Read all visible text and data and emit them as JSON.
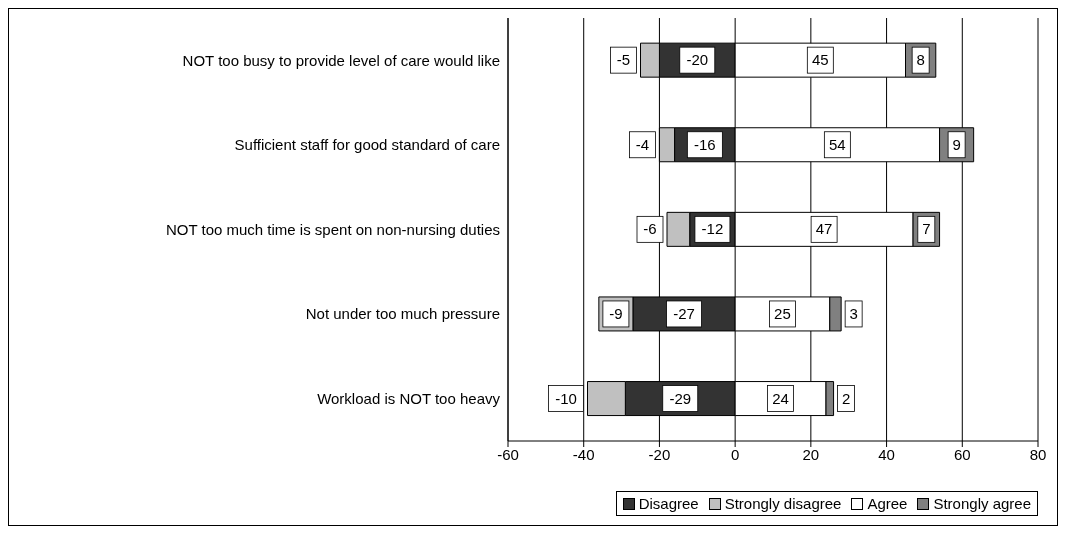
{
  "chart_data": {
    "type": "bar",
    "orientation": "horizontal",
    "stacked": true,
    "categories": [
      "NOT too busy to provide level of care would like",
      "Sufficient staff for good standard of care",
      "NOT too much time is spent on non-nursing duties",
      "Not under too much pressure",
      "Workload is NOT too heavy"
    ],
    "series": [
      {
        "name": "Disagree",
        "color": "#333333",
        "values": [
          -20,
          -16,
          -12,
          -27,
          -29
        ]
      },
      {
        "name": "Strongly disagree",
        "color": "#c0c0c0",
        "values": [
          -5,
          -4,
          -6,
          -9,
          -10
        ]
      },
      {
        "name": "Agree",
        "color": "#ffffff",
        "values": [
          45,
          54,
          47,
          25,
          24
        ]
      },
      {
        "name": "Strongly agree",
        "color": "#808080",
        "values": [
          8,
          9,
          7,
          3,
          2
        ]
      }
    ],
    "xlim": [
      -60,
      80
    ],
    "xticks": [
      -60,
      -40,
      -20,
      0,
      20,
      40,
      60,
      80
    ],
    "grid": "x",
    "legend": "bottom right",
    "data_labels": true
  }
}
